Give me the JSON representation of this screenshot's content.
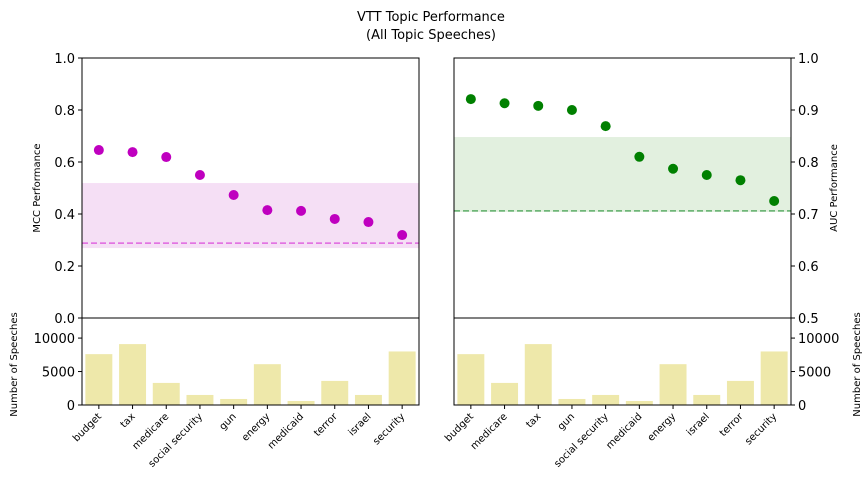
{
  "chart_data": {
    "type": "dot-and-bar-panels",
    "title": "VTT Topic Performance",
    "subtitle": "(All Topic Speeches)",
    "panels": [
      {
        "categories": [
          "budget",
          "tax",
          "medicare",
          "social security",
          "gun",
          "energy",
          "medicaid",
          "terror",
          "israel",
          "security"
        ],
        "performance": {
          "ylabel": "MCC Performance",
          "color": "#bf00bf",
          "values": [
            0.646,
            0.638,
            0.619,
            0.55,
            0.473,
            0.415,
            0.412,
            0.381,
            0.369,
            0.319
          ],
          "ylim": [
            0,
            1
          ],
          "yticks": [
            {
              "value": 0,
              "label": "0.0"
            },
            0.2,
            0.4,
            0.6,
            0.8,
            {
              "value": 1,
              "label": "1.0"
            }
          ],
          "band": [
            0.269,
            0.519
          ],
          "band_color": "#f5dff5",
          "baseline": 0.288,
          "baseline_color": "#e066e0"
        },
        "speeches": {
          "ylabel": "Number of Speeches",
          "color": "#eee8aa",
          "values": [
            7600,
            9100,
            3300,
            1500,
            900,
            6100,
            600,
            3600,
            1500,
            8000
          ],
          "ylim": [
            0,
            13000
          ],
          "yticks": [
            0,
            5000,
            10000
          ]
        }
      },
      {
        "categories": [
          "budget",
          "medicare",
          "tax",
          "gun",
          "social security",
          "medicaid",
          "energy",
          "israel",
          "terror",
          "security"
        ],
        "performance": {
          "ylabel": "AUC Performance",
          "color": "#008000",
          "values": [
            0.921,
            0.913,
            0.908,
            0.9,
            0.869,
            0.81,
            0.787,
            0.775,
            0.765,
            0.725
          ],
          "ylim": [
            0.5,
            1
          ],
          "yticks": [
            0.5,
            0.6,
            0.7,
            0.8,
            0.9,
            {
              "value": 1,
              "label": "1.0"
            }
          ],
          "band": [
            0.704,
            0.848
          ],
          "band_color": "#e2f0df",
          "baseline": 0.706,
          "baseline_color": "#5fae6a"
        },
        "speeches": {
          "ylabel": "Number of Speeches",
          "color": "#eee8aa",
          "values": [
            7600,
            3300,
            9100,
            900,
            1500,
            600,
            6100,
            1500,
            3600,
            8000
          ],
          "ylim": [
            0,
            13000
          ],
          "yticks": [
            0,
            5000,
            10000
          ]
        }
      }
    ]
  }
}
